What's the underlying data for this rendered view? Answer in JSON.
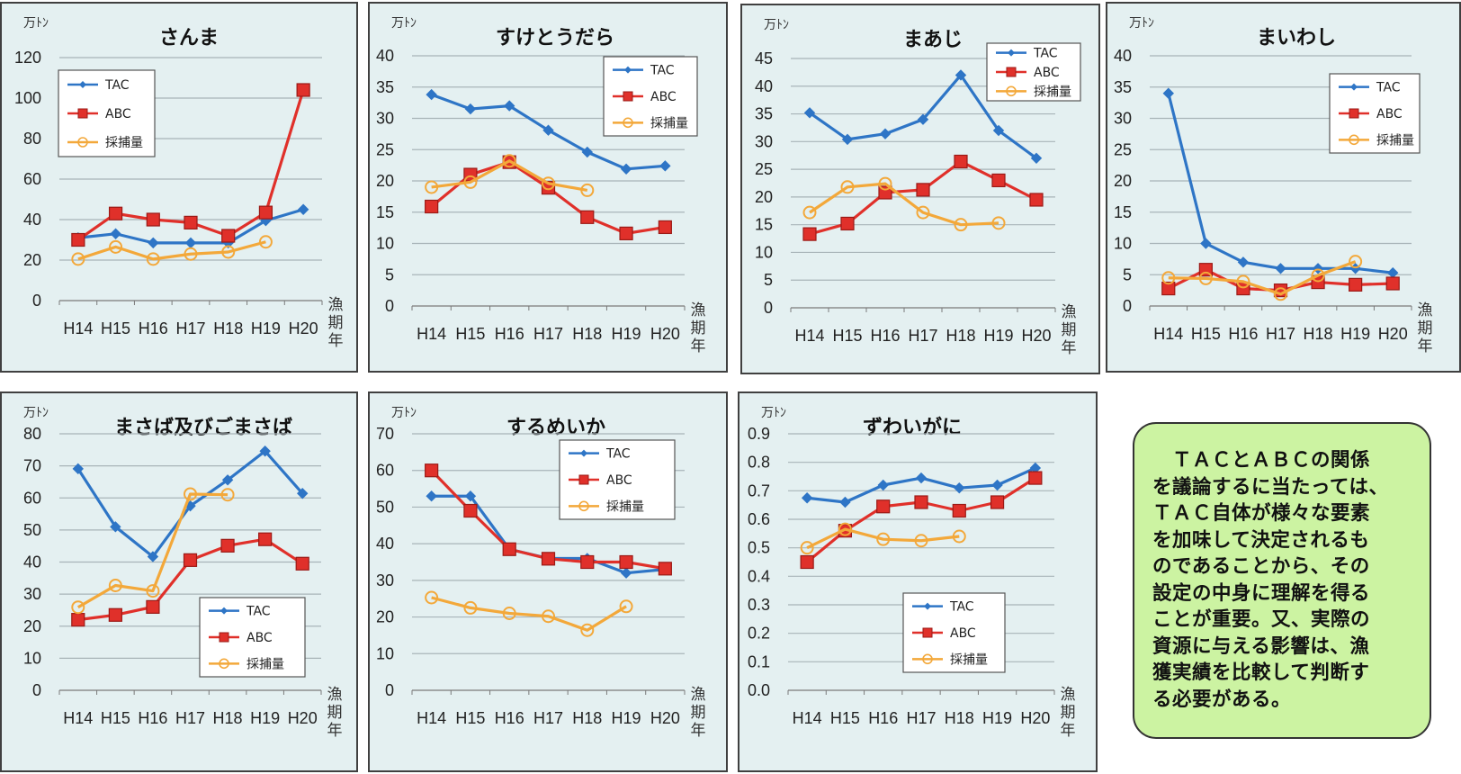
{
  "colors": {
    "tac": "#2e75c6",
    "abc": "#e0302a",
    "catch": "#f3a83a",
    "panel_bg": "#e4f0f1",
    "note_bg": "#ccf3a2"
  },
  "legend": {
    "tac": "TAC",
    "abc": "ABC",
    "catch": "採捕量"
  },
  "note": {
    "lines": [
      "　ＴＡＣとＡＢＣの関係",
      "を議論するに当たっては、",
      "ＴＡＣ自体が様々な要素",
      "を加味して決定されるも",
      "のであることから、その",
      "設定の中身に理解を得る",
      "ことが重要。又、実際の",
      "資源に与える影響は、漁",
      "獲実績を比較して判断す",
      "る必要がある。"
    ]
  },
  "chart_data": [
    {
      "type": "line",
      "title": "さんま",
      "unit_label": "万ﾄﾝ",
      "xlabel": "漁期年",
      "categories": [
        "H14",
        "H15",
        "H16",
        "H17",
        "H18",
        "H19",
        "H20"
      ],
      "ylim": [
        0,
        120
      ],
      "yticks": [
        "0",
        "20",
        "40",
        "60",
        "80",
        "100",
        "120"
      ],
      "legend_position": "top-left",
      "grid": true,
      "series": [
        {
          "name": "TAC",
          "values": [
            31,
            33,
            28.5,
            28.5,
            28.5,
            39.5,
            45
          ]
        },
        {
          "name": "ABC",
          "values": [
            30,
            43,
            40,
            38.5,
            32,
            43.5,
            104
          ]
        },
        {
          "name": "採捕量",
          "values": [
            20.5,
            26.5,
            20.5,
            23,
            24,
            29,
            null
          ]
        }
      ]
    },
    {
      "type": "line",
      "title": "すけとうだら",
      "unit_label": "万ﾄﾝ",
      "xlabel": "漁期年",
      "categories": [
        "H14",
        "H15",
        "H16",
        "H17",
        "H18",
        "H19",
        "H20"
      ],
      "ylim": [
        0,
        40
      ],
      "yticks": [
        "0",
        "5",
        "10",
        "15",
        "20",
        "25",
        "30",
        "35",
        "40"
      ],
      "legend_position": "top-right",
      "grid": true,
      "series": [
        {
          "name": "TAC",
          "values": [
            33.8,
            31.5,
            32,
            28.1,
            24.6,
            21.9,
            22.4
          ]
        },
        {
          "name": "ABC",
          "values": [
            15.9,
            21,
            23,
            18.9,
            14.2,
            11.6,
            12.6
          ]
        },
        {
          "name": "採捕量",
          "values": [
            19,
            19.8,
            23.2,
            19.6,
            18.5,
            null,
            null
          ]
        }
      ]
    },
    {
      "type": "line",
      "title": "まあじ",
      "unit_label": "万ﾄﾝ",
      "xlabel": "漁期年",
      "categories": [
        "H14",
        "H15",
        "H16",
        "H17",
        "H18",
        "H19",
        "H20"
      ],
      "ylim": [
        0,
        45
      ],
      "yticks": [
        "0",
        "5",
        "10",
        "15",
        "20",
        "25",
        "30",
        "35",
        "40",
        "45"
      ],
      "legend_position": "top-right",
      "grid": true,
      "series": [
        {
          "name": "TAC",
          "values": [
            35.2,
            30.4,
            31.4,
            34,
            42,
            32,
            27
          ]
        },
        {
          "name": "ABC",
          "values": [
            13.3,
            15.2,
            20.8,
            21.3,
            26.4,
            23,
            19.5
          ]
        },
        {
          "name": "採捕量",
          "values": [
            17.2,
            21.8,
            22.4,
            17.2,
            15,
            15.3,
            null
          ]
        }
      ]
    },
    {
      "type": "line",
      "title": "まいわし",
      "unit_label": "万ﾄﾝ",
      "xlabel": "漁期年",
      "categories": [
        "H14",
        "H15",
        "H16",
        "H17",
        "H18",
        "H19",
        "H20"
      ],
      "ylim": [
        0,
        40
      ],
      "yticks": [
        "0",
        "5",
        "10",
        "15",
        "20",
        "25",
        "30",
        "35",
        "40"
      ],
      "legend_position": "top-right",
      "grid": true,
      "series": [
        {
          "name": "TAC",
          "values": [
            34,
            10,
            7,
            6,
            6,
            6,
            5.3
          ]
        },
        {
          "name": "ABC",
          "values": [
            2.8,
            5.8,
            2.8,
            2.5,
            3.8,
            3.4,
            3.6
          ]
        },
        {
          "name": "採捕量",
          "values": [
            4.5,
            4.4,
            3.9,
            1.9,
            4.9,
            7.1,
            null
          ]
        }
      ]
    },
    {
      "type": "line",
      "title": "まさば及びごまさば",
      "unit_label": "万ﾄﾝ",
      "xlabel": "漁期年",
      "categories": [
        "H14",
        "H15",
        "H16",
        "H17",
        "H18",
        "H19",
        "H20"
      ],
      "ylim": [
        0,
        80
      ],
      "yticks": [
        "0",
        "10",
        "20",
        "30",
        "40",
        "50",
        "60",
        "70",
        "80"
      ],
      "legend_position": "bottom-right",
      "grid": true,
      "series": [
        {
          "name": "TAC",
          "values": [
            69.1,
            51,
            41.7,
            57.5,
            65.6,
            74.6,
            61.4
          ]
        },
        {
          "name": "ABC",
          "values": [
            22,
            23.5,
            26,
            40.6,
            45.1,
            47.1,
            39.5
          ]
        },
        {
          "name": "採捕量",
          "values": [
            25.9,
            32.7,
            31,
            61.2,
            61,
            null,
            null
          ]
        }
      ]
    },
    {
      "type": "line",
      "title": "するめいか",
      "unit_label": "万ﾄﾝ",
      "xlabel": "漁期年",
      "categories": [
        "H14",
        "H15",
        "H16",
        "H17",
        "H18",
        "H19",
        "H20"
      ],
      "ylim": [
        0,
        70
      ],
      "yticks": [
        "0",
        "10",
        "20",
        "30",
        "40",
        "50",
        "60",
        "70"
      ],
      "legend_position": "top-right",
      "grid": true,
      "series": [
        {
          "name": "TAC",
          "values": [
            53,
            53,
            38.5,
            36,
            36,
            32,
            33
          ]
        },
        {
          "name": "ABC",
          "values": [
            60,
            49,
            38.5,
            35.9,
            35,
            35,
            33.2
          ]
        },
        {
          "name": "採捕量",
          "values": [
            25.3,
            22.5,
            21,
            20.2,
            16.4,
            22.9,
            null
          ]
        }
      ]
    },
    {
      "type": "line",
      "title": "ずわいがに",
      "unit_label": "万ﾄﾝ",
      "xlabel": "漁期年",
      "categories": [
        "H14",
        "H15",
        "H16",
        "H17",
        "H18",
        "H19",
        "H20"
      ],
      "ylim": [
        0,
        0.9
      ],
      "yticks": [
        "0.0",
        "0.1",
        "0.2",
        "0.3",
        "0.4",
        "0.5",
        "0.6",
        "0.7",
        "0.8",
        "0.9"
      ],
      "legend_position": "bottom-center",
      "grid": true,
      "series": [
        {
          "name": "TAC",
          "values": [
            0.675,
            0.66,
            0.72,
            0.745,
            0.71,
            0.72,
            0.78
          ]
        },
        {
          "name": "ABC",
          "values": [
            0.45,
            0.56,
            0.645,
            0.66,
            0.63,
            0.66,
            0.745
          ]
        },
        {
          "name": "採捕量",
          "values": [
            0.5,
            0.565,
            0.53,
            0.525,
            0.54,
            null,
            null
          ]
        }
      ]
    }
  ]
}
